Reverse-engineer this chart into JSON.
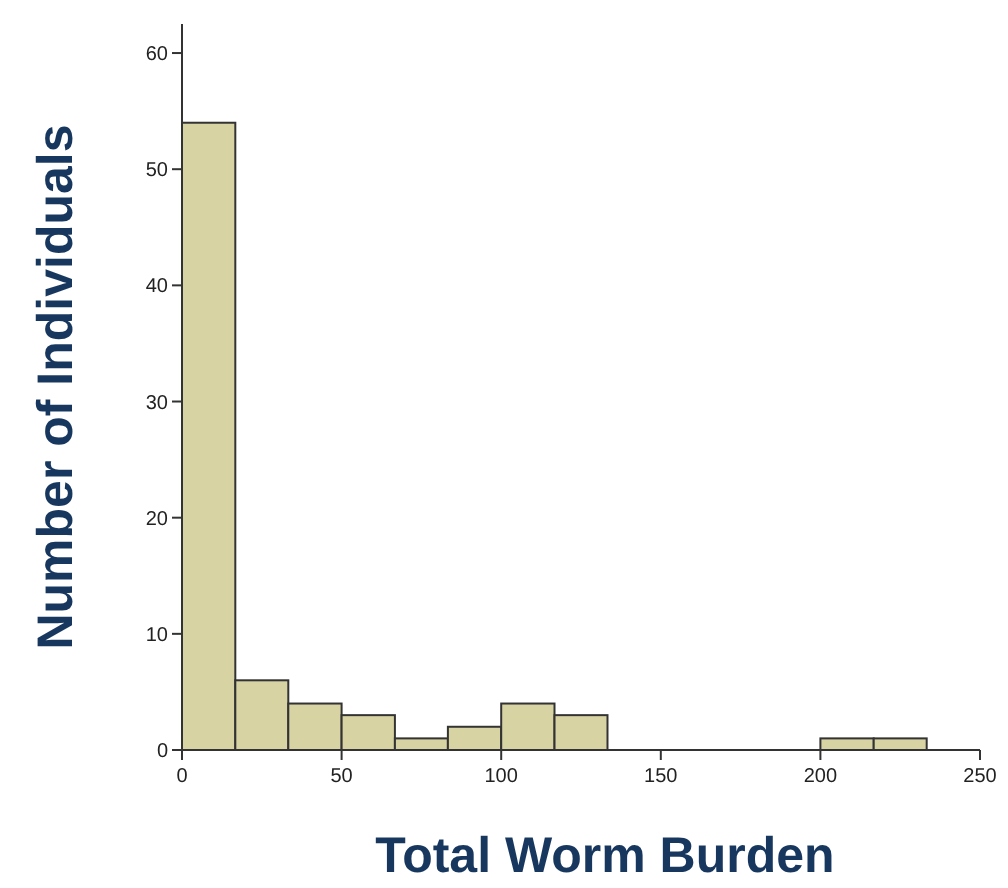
{
  "chart_data": {
    "type": "histogram",
    "xlabel": "Total Worm Burden",
    "ylabel": "Number of Individuals",
    "bins": [
      0,
      16.7,
      33.3,
      50,
      66.7,
      83.3,
      100,
      116.7,
      133.3,
      150,
      166.7,
      183.3,
      200,
      216.7,
      233.3
    ],
    "values": [
      54,
      6,
      4,
      3,
      1,
      2,
      4,
      3,
      0,
      0,
      0,
      0,
      1,
      1
    ],
    "color": "#d8d3a3",
    "xlim": [
      0,
      250
    ],
    "xticks": [
      0,
      50,
      100,
      150,
      200,
      250
    ],
    "ylim": [
      0,
      62.5
    ],
    "yticks": [
      0,
      10,
      20,
      30,
      40,
      50,
      60
    ],
    "grid": false
  }
}
